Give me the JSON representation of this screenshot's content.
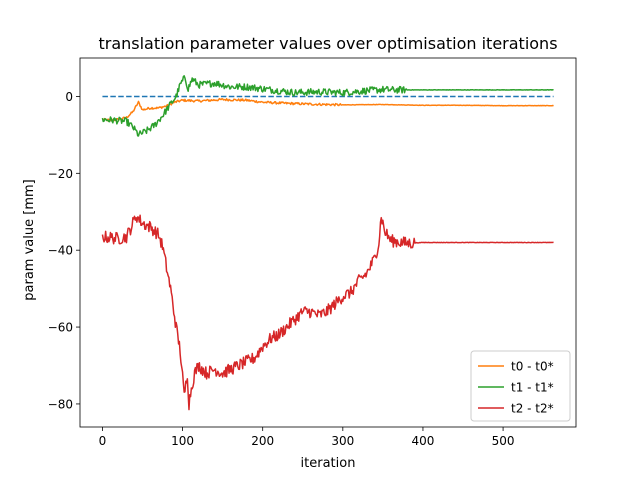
{
  "chart_data": {
    "type": "line",
    "title": "translation parameter values over optimisation iterations",
    "xlabel": "iteration",
    "ylabel": "param value [mm]",
    "xlim": [
      -28,
      591
    ],
    "ylim": [
      -86,
      10
    ],
    "xticks": [
      0,
      100,
      200,
      300,
      400,
      500
    ],
    "yticks": [
      0,
      -20,
      -40,
      -60,
      -80
    ],
    "xtick_labels": [
      "0",
      "100",
      "200",
      "300",
      "400",
      "500"
    ],
    "ytick_labels": [
      "0",
      "−20",
      "−40",
      "−60",
      "−80"
    ],
    "grid": false,
    "legend": {
      "placement": "lower-right",
      "labels": [
        "t0 - t0*",
        "t1 - t1*",
        "t2 - t2*"
      ]
    },
    "reference_line": {
      "y": 0,
      "x": [
        0,
        563
      ],
      "style": "dashed",
      "color": "#1f77b4"
    },
    "series": [
      {
        "name": "t0 - t0*",
        "color": "#ff7f0e",
        "x": [
          0,
          10,
          20,
          30,
          38,
          45,
          50,
          60,
          70,
          80,
          90,
          100,
          120,
          150,
          180,
          200,
          230,
          260,
          300,
          350,
          400,
          450,
          500,
          563
        ],
        "y": [
          -6,
          -6.2,
          -6,
          -5.5,
          -4,
          -1.5,
          -3.5,
          -3,
          -3,
          -2.5,
          -1.5,
          -1,
          -1.2,
          -0.8,
          -1,
          -1.5,
          -1.8,
          -2,
          -2.2,
          -2.1,
          -2.3,
          -2.3,
          -2.4,
          -2.4
        ],
        "noise": 0.3,
        "noise_until": 300
      },
      {
        "name": "t1 - t1*",
        "color": "#2ca02c",
        "x": [
          0,
          15,
          30,
          38,
          45,
          55,
          65,
          75,
          85,
          92,
          97,
          103,
          107,
          112,
          120,
          140,
          160,
          180,
          200,
          220,
          240,
          270,
          300,
          330,
          350,
          360,
          400,
          450,
          500,
          563
        ],
        "y": [
          -6,
          -6.2,
          -6.5,
          -8,
          -10,
          -9,
          -7.5,
          -5,
          -2,
          0,
          3,
          5,
          2,
          4.5,
          3,
          3.5,
          2.5,
          2.5,
          2,
          1.5,
          1,
          1.2,
          1,
          1.5,
          1.8,
          1.7,
          1.7,
          1.7,
          1.7,
          1.7
        ],
        "noise": 0.9,
        "noise_until": 380
      },
      {
        "name": "t2 - t2*",
        "color": "#d62728",
        "x": [
          0,
          10,
          20,
          30,
          36,
          42,
          50,
          60,
          70,
          75,
          85,
          92,
          97,
          100,
          102,
          104,
          106,
          108,
          110,
          115,
          120,
          130,
          140,
          150,
          160,
          170,
          180,
          190,
          200,
          210,
          220,
          230,
          240,
          250,
          260,
          270,
          280,
          290,
          300,
          310,
          320,
          330,
          340,
          345,
          348,
          352,
          360,
          380,
          400,
          450,
          500,
          563
        ],
        "y": [
          -36.5,
          -36.7,
          -37,
          -36.5,
          -34,
          -31,
          -33,
          -34,
          -36,
          -39,
          -50,
          -60,
          -66,
          -73,
          -78,
          -75,
          -72,
          -80,
          -77,
          -72,
          -70,
          -72,
          -71,
          -72,
          -71,
          -70,
          -69,
          -68,
          -65,
          -63,
          -62,
          -60,
          -58,
          -56,
          -56,
          -57,
          -56,
          -54,
          -52,
          -51,
          -48,
          -46,
          -42,
          -38,
          -31,
          -35,
          -37.5,
          -38.2,
          -38,
          -38,
          -38,
          -38
        ],
        "noise": 1.6,
        "noise_until": 390
      }
    ]
  }
}
